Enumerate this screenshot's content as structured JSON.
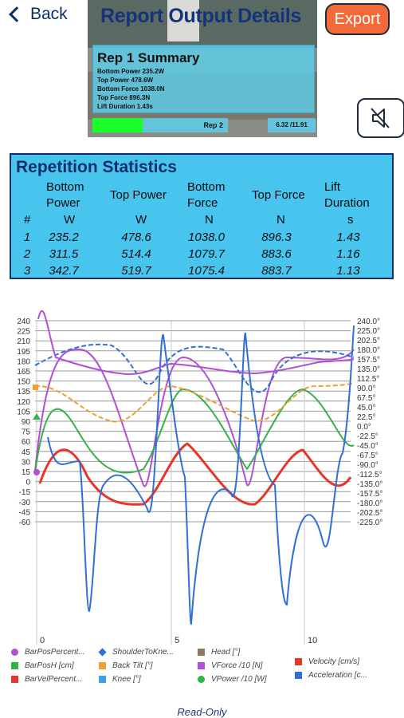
{
  "nav": {
    "back_label": "Back",
    "title": "Report Output Details",
    "export_label": "Export"
  },
  "summary": {
    "title": "Rep 1 Summary",
    "lines": [
      "Bottom Power 235.2W",
      "Top Power 478.6W",
      "Bottom Force 1038.0N",
      "Top Force 896.3N",
      "Lift Duration  1.43s"
    ],
    "rep_label": "Rep 2",
    "time": "6.32 /11.91",
    "progress": 0.37
  },
  "colors": {
    "accent": "#f26a3a",
    "panel": "#48c5ef",
    "navy": "#13347a",
    "progress": "#1aff2a"
  },
  "stats": {
    "title": "Repetition Statistics",
    "headers": [
      {
        "line1": "Bottom",
        "line2": "Power",
        "unit": "W"
      },
      {
        "line1": "Top Power",
        "line2": "",
        "unit": "W"
      },
      {
        "line1": "Bottom",
        "line2": "Force",
        "unit": "N"
      },
      {
        "line1": "Top Force",
        "line2": "",
        "unit": "N"
      },
      {
        "line1": "Lift",
        "line2": "Duration",
        "unit": "s"
      }
    ],
    "index_header": "#",
    "rows": [
      [
        "1",
        "235.2",
        "478.6",
        "1038.0",
        "896.3",
        "1.43"
      ],
      [
        "2",
        "311.5",
        "514.4",
        "1079.7",
        "883.6",
        "1.16"
      ],
      [
        "3",
        "342.7",
        "519.7",
        "1075.4",
        "883.7",
        "1.13"
      ]
    ]
  },
  "chart_data": {
    "type": "line",
    "x_ticks": [
      "0",
      "5",
      "10"
    ],
    "y_left_ticks": [
      "240",
      "225",
      "210",
      "195",
      "180",
      "165",
      "150",
      "135",
      "120",
      "105",
      "90",
      "75",
      "60",
      "45",
      "30",
      "15",
      "0",
      "-15",
      "-30",
      "-45",
      "-60"
    ],
    "y_right_ticks": [
      "240.0°",
      "225.0°",
      "202.5°",
      "180.0°",
      "157.5°",
      "135.0°",
      "112.5°",
      "90.0°",
      "67.5°",
      "45.0°",
      "22.5°",
      "0.0°",
      "-22.5°",
      "-45.0°",
      "-67.5°",
      "-90.0°",
      "-112.5°",
      "-135.0°",
      "-157.5°",
      "-180.0°",
      "-202.5°",
      "-225.0°"
    ],
    "grid": true,
    "series": [
      {
        "name": "BarPosPercent...",
        "color": "#b24fd6",
        "marker": "circle"
      },
      {
        "name": "BarPosH [cm]",
        "color": "#34b24a",
        "marker": "triangle"
      },
      {
        "name": "BarVelPercent...",
        "color": "#e8352a",
        "marker": "square"
      },
      {
        "name": "ShoulderToKne...",
        "color": "#2f6fd6",
        "marker": "diamond"
      },
      {
        "name": "Back Tilt [°]",
        "color": "#f0a030",
        "marker": "pentagon"
      },
      {
        "name": "Knee [°]",
        "color": "#3aa0e8",
        "marker": "star"
      },
      {
        "name": "Head [°]",
        "color": "#8c7a60",
        "marker": "x"
      },
      {
        "name": "VForce /10 [N]",
        "color": "#b24fd6",
        "marker": "plus"
      },
      {
        "name": "VPower /10 [W]",
        "color": "#34b24a",
        "marker": "circle"
      },
      {
        "name": "Velocity [cm/s]",
        "color": "#e8352a",
        "marker": "triangle"
      },
      {
        "name": "Acceleration [c...",
        "color": "#2f6fd6",
        "marker": "square"
      }
    ]
  },
  "footer": {
    "readonly": "Read-Only"
  },
  "icons": {
    "back": "chevron-left-icon",
    "mute": "speaker-muted-icon"
  }
}
